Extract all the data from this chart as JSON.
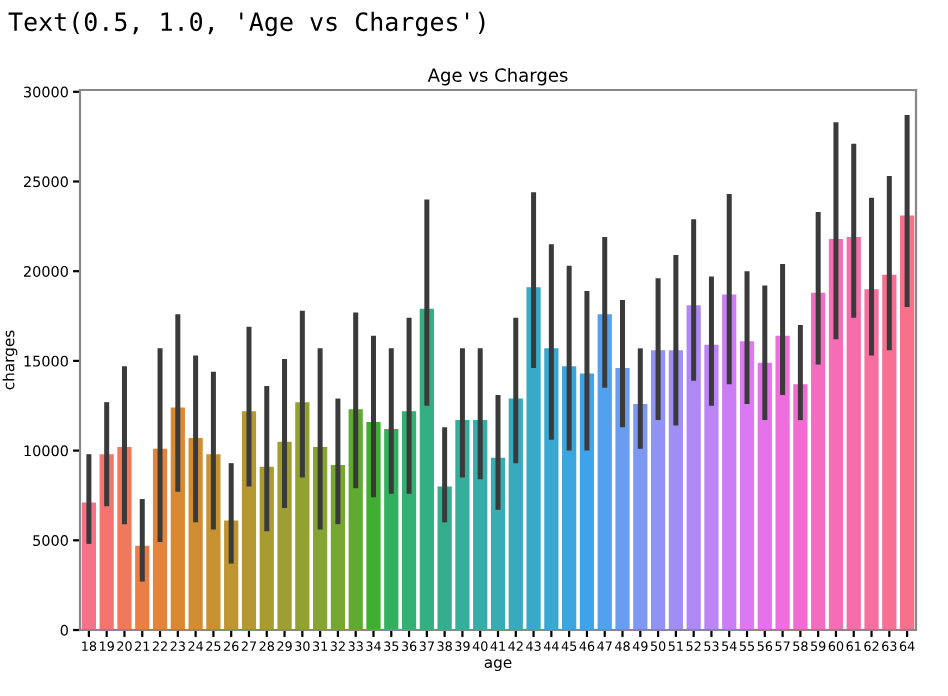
{
  "chart_data": {
    "type": "bar",
    "title": "Age vs Charges",
    "xlabel": "age",
    "ylabel": "charges",
    "annotations": [
      "Text(0.5, 1.0, 'Age vs Charges')"
    ],
    "categories": [
      "18",
      "19",
      "20",
      "21",
      "22",
      "23",
      "24",
      "25",
      "26",
      "27",
      "28",
      "29",
      "30",
      "31",
      "32",
      "33",
      "34",
      "35",
      "36",
      "37",
      "38",
      "39",
      "40",
      "41",
      "42",
      "43",
      "44",
      "45",
      "46",
      "47",
      "48",
      "49",
      "50",
      "51",
      "52",
      "53",
      "54",
      "55",
      "56",
      "57",
      "58",
      "59",
      "60",
      "61",
      "62",
      "63",
      "64"
    ],
    "values": [
      7100,
      9800,
      10200,
      4700,
      10100,
      12400,
      10700,
      9800,
      6100,
      12200,
      9100,
      10500,
      12700,
      10200,
      9200,
      12300,
      11600,
      11200,
      12200,
      17900,
      8000,
      11700,
      11700,
      9600,
      12900,
      19100,
      15700,
      14700,
      14300,
      17600,
      14600,
      12600,
      15600,
      15600,
      18100,
      15900,
      18700,
      16100,
      14900,
      16400,
      13700,
      18800,
      21800,
      21900,
      19000,
      19800,
      23100
    ],
    "errors": [
      [
        4800,
        9800
      ],
      [
        6900,
        12700
      ],
      [
        5900,
        14700
      ],
      [
        2700,
        7300
      ],
      [
        4900,
        15700
      ],
      [
        7700,
        17600
      ],
      [
        6000,
        15300
      ],
      [
        5600,
        14400
      ],
      [
        3700,
        9300
      ],
      [
        8000,
        16900
      ],
      [
        5500,
        13600
      ],
      [
        6800,
        15100
      ],
      [
        8500,
        17800
      ],
      [
        5600,
        15700
      ],
      [
        5900,
        12900
      ],
      [
        7900,
        17700
      ],
      [
        7400,
        16400
      ],
      [
        7600,
        15700
      ],
      [
        7600,
        17400
      ],
      [
        12500,
        24000
      ],
      [
        6000,
        11300
      ],
      [
        8500,
        15700
      ],
      [
        8400,
        15700
      ],
      [
        6700,
        13100
      ],
      [
        9300,
        17400
      ],
      [
        14600,
        24400
      ],
      [
        10600,
        21500
      ],
      [
        10000,
        20300
      ],
      [
        10000,
        18900
      ],
      [
        13500,
        21900
      ],
      [
        11300,
        18400
      ],
      [
        10100,
        15700
      ],
      [
        11700,
        19600
      ],
      [
        11400,
        20900
      ],
      [
        13900,
        22900
      ],
      [
        12500,
        19700
      ],
      [
        13700,
        24300
      ],
      [
        12600,
        20000
      ],
      [
        11700,
        19200
      ],
      [
        13100,
        20400
      ],
      [
        11700,
        17000
      ],
      [
        14800,
        23300
      ],
      [
        16200,
        28300
      ],
      [
        17400,
        27100
      ],
      [
        15300,
        24100
      ],
      [
        15600,
        25300
      ],
      [
        18000,
        28700
      ]
    ],
    "colors": [
      "#f77189",
      "#f5746f",
      "#f1785a",
      "#eb7e45",
      "#e3843a",
      "#da8933",
      "#d18d32",
      "#c89132",
      "#bf9532",
      "#b59832",
      "#aa9b31",
      "#9f9e31",
      "#93a131",
      "#85a431",
      "#75a731",
      "#5faa31",
      "#40ae31",
      "#32b05d",
      "#33b072",
      "#34af82",
      "#35ae90",
      "#35ae9c",
      "#36ada8",
      "#37acb3",
      "#37abbd",
      "#38a9c7",
      "#39a8d1",
      "#3aa6dc",
      "#3fa3e9",
      "#53a0ee",
      "#6a9cf0",
      "#7e98f2",
      "#9092f4",
      "#a08ef4",
      "#ae89f4",
      "#bc84f4",
      "#cb7ef4",
      "#d97af2",
      "#e572ea",
      "#ef6ddd",
      "#f36ad0",
      "#f46cc2",
      "#f56db5",
      "#f56ea9",
      "#f66f9e",
      "#f67094",
      "#f7718b"
    ],
    "ylim": [
      0,
      30100
    ],
    "yticks": [
      0,
      5000,
      10000,
      15000,
      20000,
      25000,
      30000
    ],
    "grid": false,
    "legend": false
  }
}
